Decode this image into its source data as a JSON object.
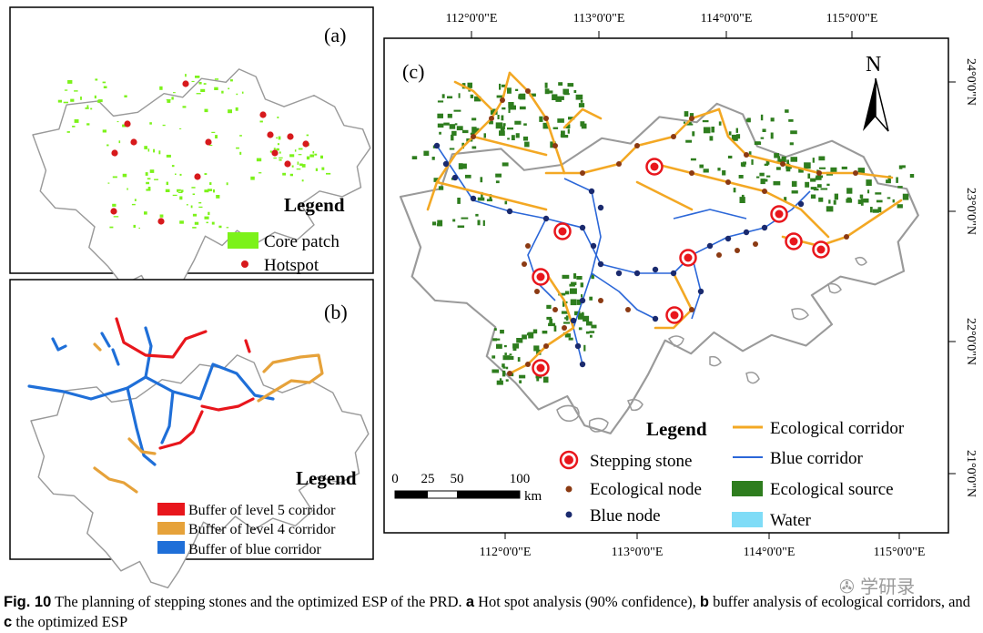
{
  "panel_a": {
    "label": "(a)",
    "legend_title": "Legend",
    "legend_core_patch": "Core patch",
    "legend_hotspot": "Hotspot",
    "colors": {
      "core_patch": "#7cf21a",
      "hotspot": "#d7191c"
    }
  },
  "panel_b": {
    "label": "(b)",
    "legend_title": "Legend",
    "legend_level5": "Buffer of level 5 corridor",
    "legend_level4": "Buffer of level 4 corridor",
    "legend_blue": "Buffer of blue corridor",
    "colors": {
      "level5": "#e8161c",
      "level4": "#e6a23a",
      "blue": "#1f6fd8"
    }
  },
  "panel_c": {
    "label": "(c)",
    "north_label": "N",
    "top_lon_labels": [
      "112°0'0\"E",
      "113°0'0\"E",
      "114°0'0\"E",
      "115°0'0\"E"
    ],
    "bottom_lon_labels": [
      "112°0'0\"E",
      "113°0'0\"E",
      "114°0'0\"E",
      "115°0'0\"E"
    ],
    "lat_labels": [
      "24°0'0\"N",
      "23°0'0\"N",
      "22°0'0\"N",
      "21°0'0\"N"
    ],
    "scale_labels": [
      "0",
      "25",
      "50",
      "100"
    ],
    "scale_unit": "km",
    "legend_title": "Legend",
    "legend_stepping_stone": "Stepping stone",
    "legend_ecological_node": "Ecological node",
    "legend_blue_node": "Blue node",
    "legend_ecological_corridor": "Ecological corridor",
    "legend_blue_corridor": "Blue corridor",
    "legend_ecological_source": "Ecological source",
    "legend_water": "Water",
    "colors": {
      "ecological_corridor": "#f3a824",
      "blue_corridor": "#2b67d8",
      "ecological_source": "#2e7d1e",
      "water": "#7fdcf7",
      "ecological_node": "#8b3a13",
      "blue_node": "#1a2a6e",
      "stepping_stone": "#e8161c"
    }
  },
  "caption": {
    "fig_label": "Fig. 10",
    "intro": "The planning of stepping stones and the optimized ESP of the PRD.",
    "a_label": "a",
    "a_text": "Hot spot analysis (90% confidence),",
    "b_label": "b",
    "b_text": "buffer analysis of ecological corridors, and",
    "c_label": "c",
    "c_text": "the optimized ESP"
  },
  "watermark": "学研录"
}
